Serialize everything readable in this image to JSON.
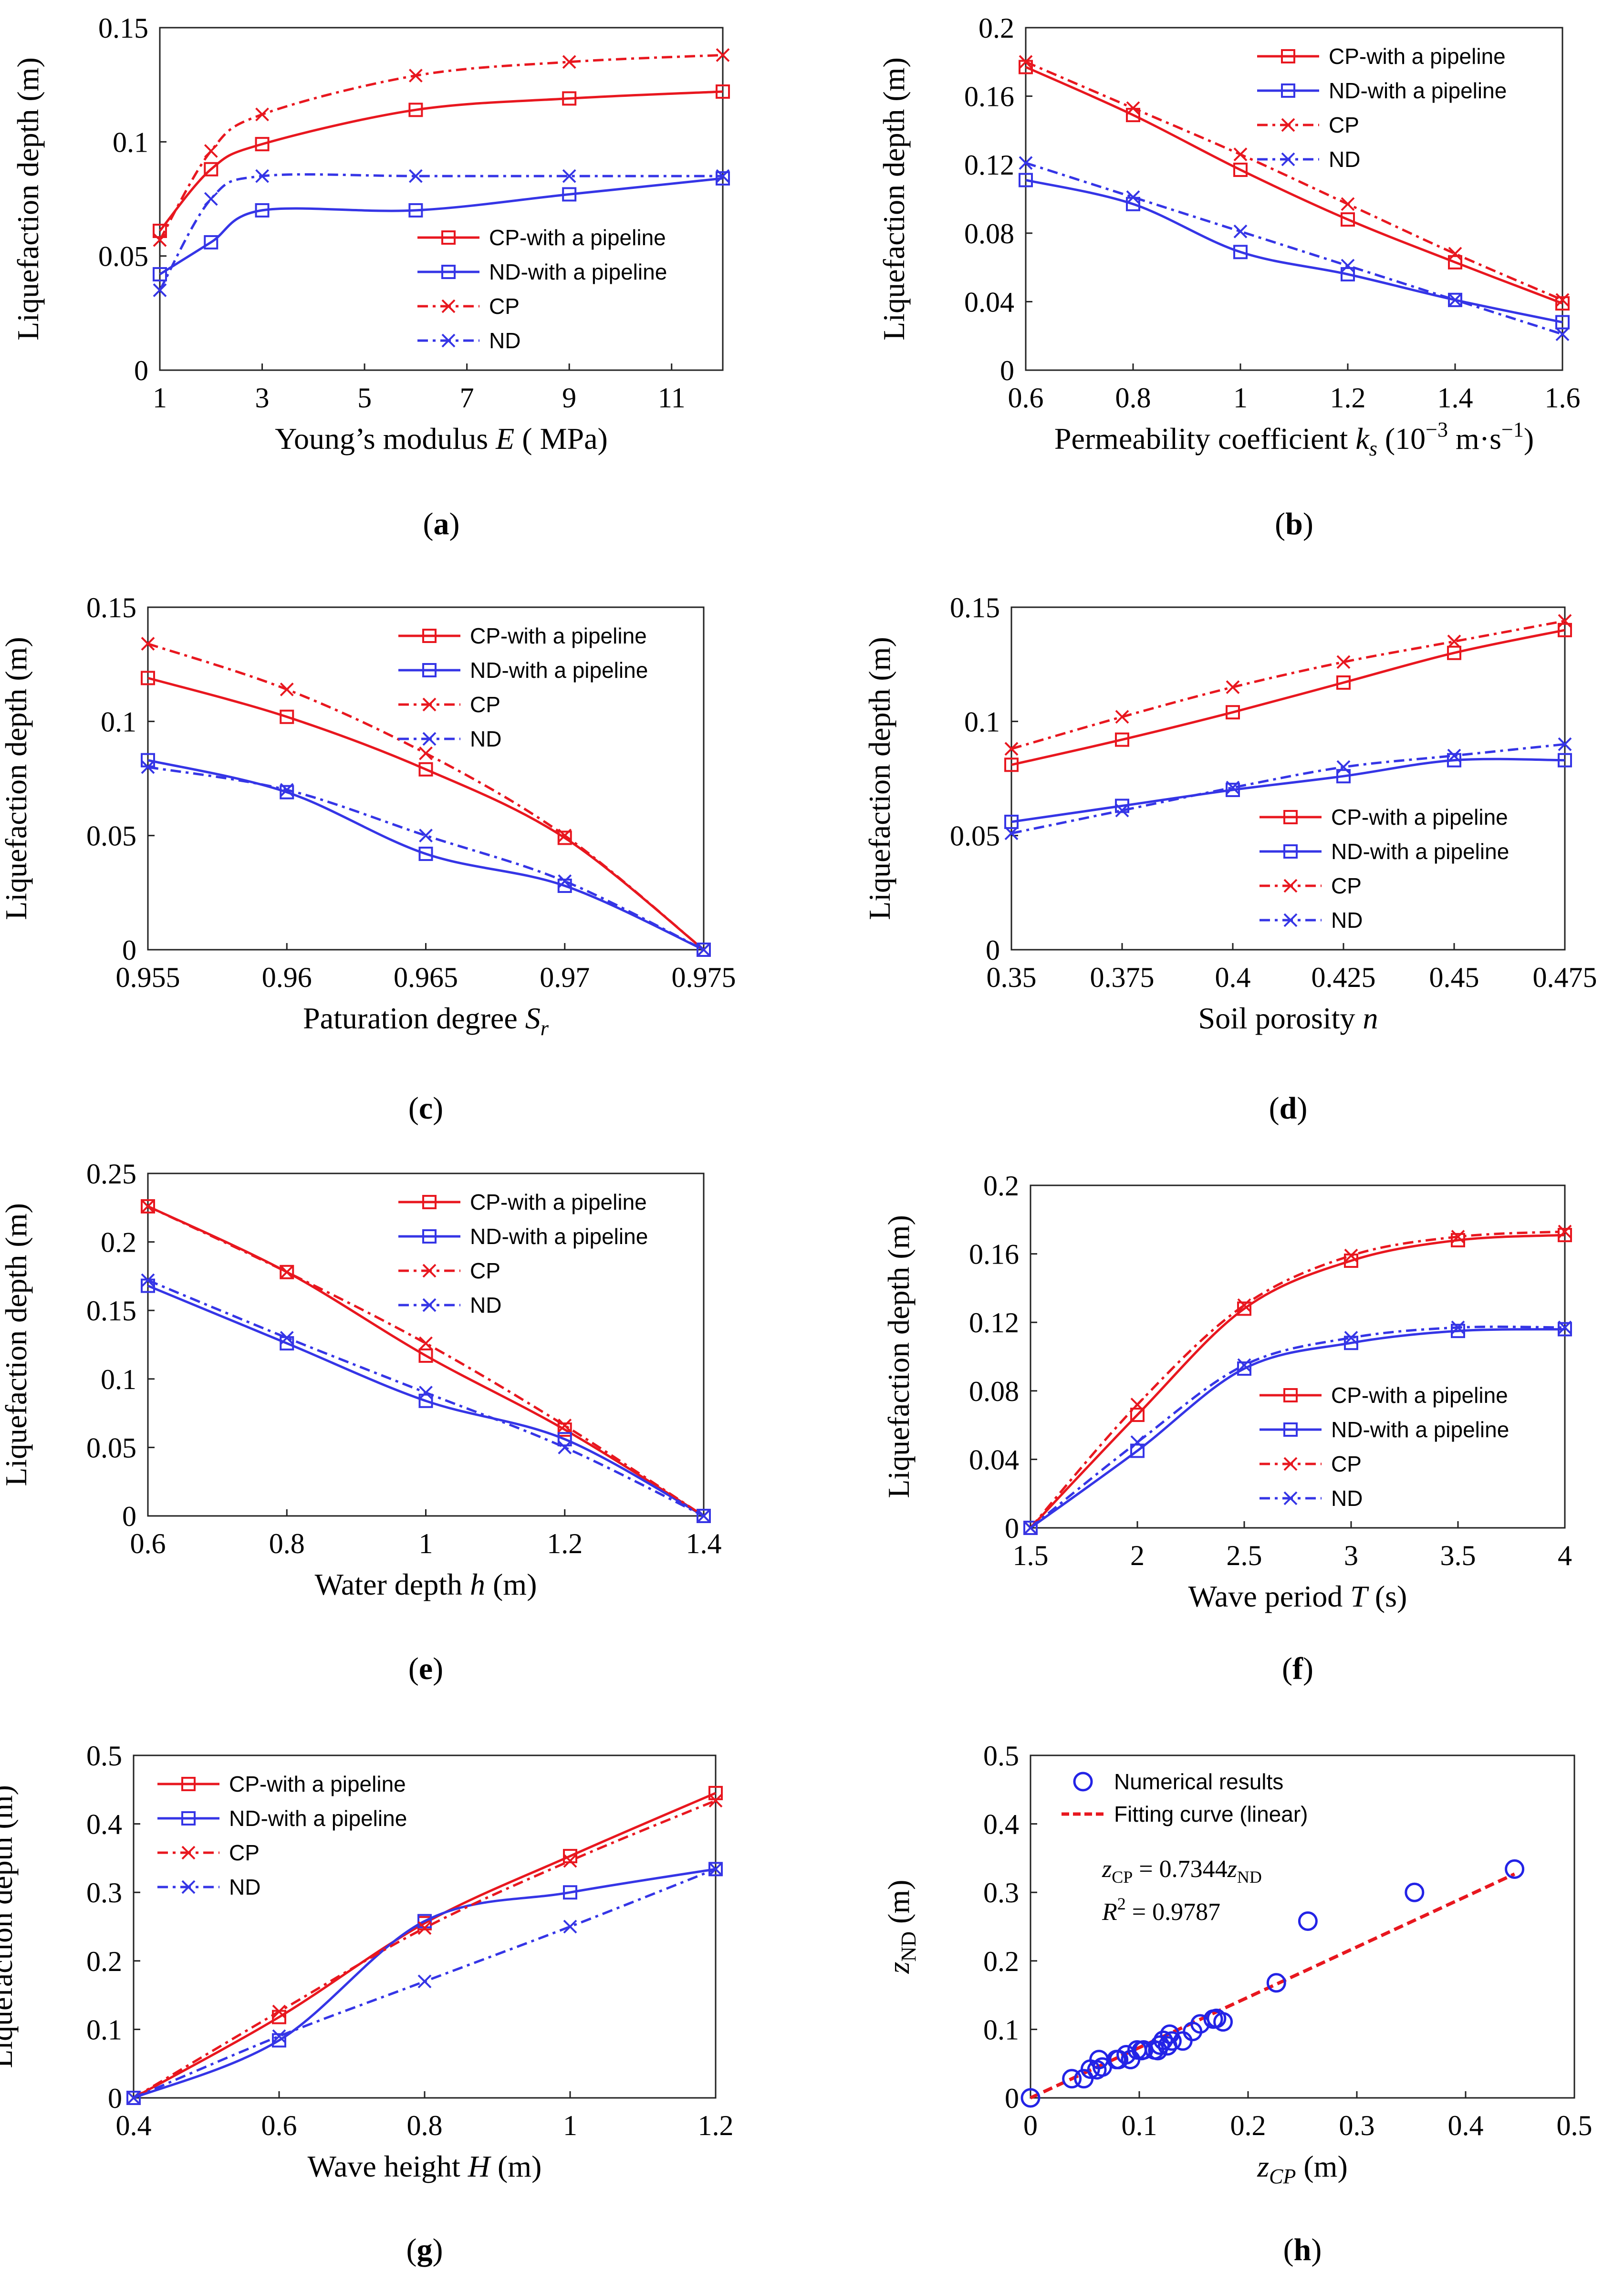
{
  "figure": {
    "colors": {
      "cp": "#e8171f",
      "nd": "#3535e6",
      "fit": "#e8171f",
      "points": "#2323e6"
    },
    "legend_names": {
      "cp_pipe": "CP-with a pipeline",
      "nd_pipe": "ND-with a pipeline",
      "cp": "CP",
      "nd": "ND"
    }
  },
  "chart_data": [
    {
      "id": "a",
      "type": "line",
      "panel_label": "a",
      "ylabel": "Liquefaction depth (m)",
      "xlabel": {
        "pre": "Young’s modulus ",
        "sym": "E",
        "post": " ( MPa)"
      },
      "xlim": [
        1,
        12
      ],
      "ylim": [
        0,
        0.15
      ],
      "xticks": [
        1,
        3,
        5,
        7,
        9,
        11
      ],
      "xtick_labels": [
        "1",
        "3",
        "5",
        "7",
        "9",
        "11"
      ],
      "yticks": [
        0,
        0.05,
        0.1,
        0.15
      ],
      "ytick_labels": [
        "0",
        "0.05",
        "0.1",
        "0.15"
      ],
      "legend_position": "bottom-right",
      "series": [
        {
          "name": "CP-with a pipeline",
          "kind": "cp_pipe",
          "x": [
            1,
            2,
            3,
            6,
            9,
            12
          ],
          "y": [
            0.061,
            0.088,
            0.099,
            0.114,
            0.119,
            0.122
          ]
        },
        {
          "name": "ND-with a pipeline",
          "kind": "nd_pipe",
          "x": [
            1,
            2,
            3,
            6,
            9,
            12
          ],
          "y": [
            0.042,
            0.056,
            0.07,
            0.07,
            0.077,
            0.084
          ]
        },
        {
          "name": "CP",
          "kind": "cp",
          "x": [
            1,
            2,
            3,
            6,
            9,
            12
          ],
          "y": [
            0.057,
            0.096,
            0.112,
            0.129,
            0.135,
            0.138
          ]
        },
        {
          "name": "ND",
          "kind": "nd",
          "x": [
            1,
            2,
            3,
            6,
            9,
            12
          ],
          "y": [
            0.035,
            0.075,
            0.085,
            0.085,
            0.085,
            0.085
          ]
        }
      ]
    },
    {
      "id": "b",
      "type": "line",
      "panel_label": "b",
      "ylabel": "Liquefaction depth (m)",
      "xlabel": {
        "pre": "Permeability coefficient ",
        "sym": "k",
        "sub": "s",
        "post": " (10",
        "sup": "−3",
        "post2": " m·s",
        "sup2": "−1",
        "post3": ")"
      },
      "xlim": [
        0.6,
        1.6
      ],
      "ylim": [
        0,
        0.2
      ],
      "xticks": [
        0.6,
        0.8,
        1.0,
        1.2,
        1.4,
        1.6
      ],
      "xtick_labels": [
        "0.6",
        "0.8",
        "1",
        "1.2",
        "1.4",
        "1.6"
      ],
      "yticks": [
        0,
        0.04,
        0.08,
        0.12,
        0.16,
        0.2
      ],
      "ytick_labels": [
        "0",
        "0.04",
        "0.08",
        "0.12",
        "0.16",
        "0.2"
      ],
      "legend_position": "top-right",
      "series": [
        {
          "name": "CP-with a pipeline",
          "kind": "cp_pipe",
          "x": [
            0.6,
            0.8,
            1.0,
            1.2,
            1.4,
            1.6
          ],
          "y": [
            0.177,
            0.149,
            0.117,
            0.088,
            0.063,
            0.039
          ]
        },
        {
          "name": "ND-with a pipeline",
          "kind": "nd_pipe",
          "x": [
            0.6,
            0.8,
            1.0,
            1.2,
            1.4,
            1.6
          ],
          "y": [
            0.111,
            0.097,
            0.069,
            0.056,
            0.041,
            0.028
          ]
        },
        {
          "name": "CP",
          "kind": "cp",
          "x": [
            0.6,
            0.8,
            1.0,
            1.2,
            1.4,
            1.6
          ],
          "y": [
            0.18,
            0.153,
            0.126,
            0.097,
            0.068,
            0.041
          ]
        },
        {
          "name": "ND",
          "kind": "nd",
          "x": [
            0.6,
            0.8,
            1.0,
            1.2,
            1.4,
            1.6
          ],
          "y": [
            0.121,
            0.101,
            0.081,
            0.061,
            0.041,
            0.021
          ]
        }
      ]
    },
    {
      "id": "c",
      "type": "line",
      "panel_label": "c",
      "ylabel": "Liquefaction depth (m)",
      "xlabel": {
        "pre": "Paturation degree ",
        "sym": "S",
        "sub": "r"
      },
      "xlim": [
        0.955,
        0.975
      ],
      "ylim": [
        0,
        0.15
      ],
      "xticks": [
        0.955,
        0.96,
        0.965,
        0.97,
        0.975
      ],
      "xtick_labels": [
        "0.955",
        "0.96",
        "0.965",
        "0.97",
        "0.975"
      ],
      "yticks": [
        0,
        0.05,
        0.1,
        0.15
      ],
      "ytick_labels": [
        "0",
        "0.05",
        "0.1",
        "0.15"
      ],
      "legend_position": "top-right",
      "series": [
        {
          "name": "CP-with a pipeline",
          "kind": "cp_pipe",
          "x": [
            0.955,
            0.96,
            0.965,
            0.97,
            0.975
          ],
          "y": [
            0.119,
            0.102,
            0.079,
            0.049,
            0.0
          ]
        },
        {
          "name": "ND-with a pipeline",
          "kind": "nd_pipe",
          "x": [
            0.955,
            0.96,
            0.965,
            0.97,
            0.975
          ],
          "y": [
            0.083,
            0.069,
            0.042,
            0.028,
            0.0
          ]
        },
        {
          "name": "CP",
          "kind": "cp",
          "x": [
            0.955,
            0.96,
            0.965,
            0.97,
            0.975
          ],
          "y": [
            0.134,
            0.114,
            0.086,
            0.05,
            0.0
          ]
        },
        {
          "name": "ND",
          "kind": "nd",
          "x": [
            0.955,
            0.96,
            0.965,
            0.97,
            0.975
          ],
          "y": [
            0.08,
            0.07,
            0.05,
            0.03,
            0.0
          ]
        }
      ]
    },
    {
      "id": "d",
      "type": "line",
      "panel_label": "d",
      "ylabel": "Liquefaction depth (m)",
      "xlabel": {
        "pre": "Soil porosity ",
        "sym": "n"
      },
      "xlim": [
        0.35,
        0.475
      ],
      "ylim": [
        0,
        0.15
      ],
      "xticks": [
        0.35,
        0.375,
        0.4,
        0.425,
        0.45,
        0.475
      ],
      "xtick_labels": [
        "0.35",
        "0.375",
        "0.4",
        "0.425",
        "0.45",
        "0.475"
      ],
      "yticks": [
        0,
        0.05,
        0.1,
        0.15
      ],
      "ytick_labels": [
        "0",
        "0.05",
        "0.1",
        "0.15"
      ],
      "legend_position": "bottom-right",
      "series": [
        {
          "name": "CP-with a pipeline",
          "kind": "cp_pipe",
          "x": [
            0.35,
            0.375,
            0.4,
            0.425,
            0.45,
            0.475
          ],
          "y": [
            0.081,
            0.092,
            0.104,
            0.117,
            0.13,
            0.14
          ]
        },
        {
          "name": "ND-with a pipeline",
          "kind": "nd_pipe",
          "x": [
            0.35,
            0.375,
            0.4,
            0.425,
            0.45,
            0.475
          ],
          "y": [
            0.056,
            0.063,
            0.07,
            0.076,
            0.083,
            0.083
          ]
        },
        {
          "name": "CP",
          "kind": "cp",
          "x": [
            0.35,
            0.375,
            0.4,
            0.425,
            0.45,
            0.475
          ],
          "y": [
            0.088,
            0.102,
            0.115,
            0.126,
            0.135,
            0.144
          ]
        },
        {
          "name": "ND",
          "kind": "nd",
          "x": [
            0.35,
            0.375,
            0.4,
            0.425,
            0.45,
            0.475
          ],
          "y": [
            0.051,
            0.061,
            0.071,
            0.08,
            0.085,
            0.09
          ]
        }
      ]
    },
    {
      "id": "e",
      "type": "line",
      "panel_label": "e",
      "ylabel": "Liquefaction depth (m)",
      "xlabel": {
        "pre": "Water depth ",
        "sym": "h",
        "post": " (m)"
      },
      "xlim": [
        0.6,
        1.4
      ],
      "ylim": [
        0,
        0.25
      ],
      "xticks": [
        0.6,
        0.8,
        1.0,
        1.2,
        1.4
      ],
      "xtick_labels": [
        "0.6",
        "0.8",
        "1",
        "1.2",
        "1.4"
      ],
      "yticks": [
        0,
        0.05,
        0.1,
        0.15,
        0.2,
        0.25
      ],
      "ytick_labels": [
        "0",
        "0.05",
        "0.1",
        "0.15",
        "0.2",
        "0.25"
      ],
      "legend_position": "top-right",
      "series": [
        {
          "name": "CP-with a pipeline",
          "kind": "cp_pipe",
          "x": [
            0.6,
            0.8,
            1.0,
            1.2,
            1.4
          ],
          "y": [
            0.226,
            0.178,
            0.117,
            0.063,
            0.0
          ]
        },
        {
          "name": "ND-with a pipeline",
          "kind": "nd_pipe",
          "x": [
            0.6,
            0.8,
            1.0,
            1.2,
            1.4
          ],
          "y": [
            0.168,
            0.126,
            0.084,
            0.056,
            0.0
          ]
        },
        {
          "name": "CP",
          "kind": "cp",
          "x": [
            0.6,
            0.8,
            1.0,
            1.2,
            1.4
          ],
          "y": [
            0.226,
            0.178,
            0.126,
            0.066,
            0.0
          ]
        },
        {
          "name": "ND",
          "kind": "nd",
          "x": [
            0.6,
            0.8,
            1.0,
            1.2,
            1.4
          ],
          "y": [
            0.172,
            0.13,
            0.09,
            0.05,
            0.0
          ]
        }
      ]
    },
    {
      "id": "f",
      "type": "line",
      "panel_label": "f",
      "ylabel": "Liquefaction depth (m)",
      "xlabel": {
        "pre": "Wave period ",
        "sym": "T",
        "post": " (s)"
      },
      "xlim": [
        1.5,
        4.0
      ],
      "ylim": [
        0,
        0.2
      ],
      "xticks": [
        1.5,
        2.0,
        2.5,
        3.0,
        3.5,
        4.0
      ],
      "xtick_labels": [
        "1.5",
        "2",
        "2.5",
        "3",
        "3.5",
        "4"
      ],
      "yticks": [
        0,
        0.04,
        0.08,
        0.12,
        0.16,
        0.2
      ],
      "ytick_labels": [
        "0",
        "0.04",
        "0.08",
        "0.12",
        "0.16",
        "0.2"
      ],
      "legend_position": "bottom-right",
      "series": [
        {
          "name": "CP-with a pipeline",
          "kind": "cp_pipe",
          "x": [
            1.5,
            2.0,
            2.5,
            3.0,
            3.5,
            4.0
          ],
          "y": [
            0.0,
            0.066,
            0.128,
            0.156,
            0.168,
            0.171
          ]
        },
        {
          "name": "ND-with a pipeline",
          "kind": "nd_pipe",
          "x": [
            1.5,
            2.0,
            2.5,
            3.0,
            3.5,
            4.0
          ],
          "y": [
            0.0,
            0.045,
            0.093,
            0.108,
            0.115,
            0.116
          ]
        },
        {
          "name": "CP",
          "kind": "cp",
          "x": [
            1.5,
            2.0,
            2.5,
            3.0,
            3.5,
            4.0
          ],
          "y": [
            0.0,
            0.072,
            0.13,
            0.159,
            0.17,
            0.173
          ]
        },
        {
          "name": "ND",
          "kind": "nd",
          "x": [
            1.5,
            2.0,
            2.5,
            3.0,
            3.5,
            4.0
          ],
          "y": [
            0.0,
            0.05,
            0.095,
            0.111,
            0.117,
            0.117
          ]
        }
      ]
    },
    {
      "id": "g",
      "type": "line",
      "panel_label": "g",
      "ylabel": "Liquefaction depth (m)",
      "xlabel": {
        "pre": "Wave height ",
        "sym": "H",
        "post": " (m)"
      },
      "xlim": [
        0.4,
        1.2
      ],
      "ylim": [
        0,
        0.5
      ],
      "xticks": [
        0.4,
        0.6,
        0.8,
        1.0,
        1.2
      ],
      "xtick_labels": [
        "0.4",
        "0.6",
        "0.8",
        "1",
        "1.2"
      ],
      "yticks": [
        0,
        0.1,
        0.2,
        0.3,
        0.4,
        0.5
      ],
      "ytick_labels": [
        "0",
        "0.1",
        "0.2",
        "0.3",
        "0.4",
        "0.5"
      ],
      "legend_position": "top-left",
      "series": [
        {
          "name": "CP-with a pipeline",
          "kind": "cp_pipe",
          "x": [
            0.4,
            0.6,
            0.8,
            1.0,
            1.2
          ],
          "y": [
            0.0,
            0.118,
            0.255,
            0.353,
            0.445
          ]
        },
        {
          "name": "ND-with a pipeline",
          "kind": "nd_pipe",
          "x": [
            0.4,
            0.6,
            0.8,
            1.0,
            1.2
          ],
          "y": [
            0.0,
            0.084,
            0.258,
            0.3,
            0.334
          ]
        },
        {
          "name": "CP",
          "kind": "cp",
          "x": [
            0.4,
            0.6,
            0.8,
            1.0,
            1.2
          ],
          "y": [
            0.0,
            0.126,
            0.248,
            0.346,
            0.434
          ]
        },
        {
          "name": "ND",
          "kind": "nd",
          "x": [
            0.4,
            0.6,
            0.8,
            1.0,
            1.2
          ],
          "y": [
            0.0,
            0.09,
            0.17,
            0.25,
            0.334
          ]
        }
      ]
    },
    {
      "id": "h",
      "type": "scatter",
      "panel_label": "h",
      "ylabel": {
        "sym": "z",
        "sub": "ND",
        "post": " (m)"
      },
      "xlabel": {
        "sym": "z",
        "sub": "CP",
        "post": " (m)"
      },
      "xlim": [
        0,
        0.5
      ],
      "ylim": [
        0,
        0.5
      ],
      "xticks": [
        0,
        0.1,
        0.2,
        0.3,
        0.4,
        0.5
      ],
      "xtick_labels": [
        "0",
        "0.1",
        "0.2",
        "0.3",
        "0.4",
        "0.5"
      ],
      "yticks": [
        0,
        0.1,
        0.2,
        0.3,
        0.4,
        0.5
      ],
      "ytick_labels": [
        "0",
        "0.1",
        "0.2",
        "0.3",
        "0.4",
        "0.5"
      ],
      "legend_position": "top-left",
      "legend": {
        "points": "Numerical results",
        "fit": "Fitting curve (linear)"
      },
      "equation": {
        "lhs": "z",
        "lhs_sub": "CP",
        "mid": " = 0.7344",
        "rhs": "z",
        "rhs_sub": "ND"
      },
      "r2": {
        "sym": "R",
        "sup": "2",
        "value": " = 0.9787"
      },
      "fit": {
        "slope": 0.7344,
        "x_range": [
          0,
          0.445
        ]
      },
      "points": {
        "x": [
          0,
          0.038,
          0.049,
          0.055,
          0.061,
          0.063,
          0.066,
          0.079,
          0.081,
          0.088,
          0.092,
          0.098,
          0.102,
          0.104,
          0.114,
          0.117,
          0.119,
          0.122,
          0.126,
          0.128,
          0.13,
          0.14,
          0.149,
          0.156,
          0.168,
          0.171,
          0.177,
          0.226,
          0.255,
          0.353,
          0.445
        ],
        "y": [
          0,
          0.028,
          0.028,
          0.042,
          0.041,
          0.056,
          0.045,
          0.056,
          0.056,
          0.063,
          0.056,
          0.07,
          0.069,
          0.07,
          0.07,
          0.069,
          0.077,
          0.084,
          0.076,
          0.093,
          0.083,
          0.083,
          0.097,
          0.108,
          0.115,
          0.116,
          0.111,
          0.168,
          0.258,
          0.3,
          0.334
        ]
      }
    }
  ]
}
